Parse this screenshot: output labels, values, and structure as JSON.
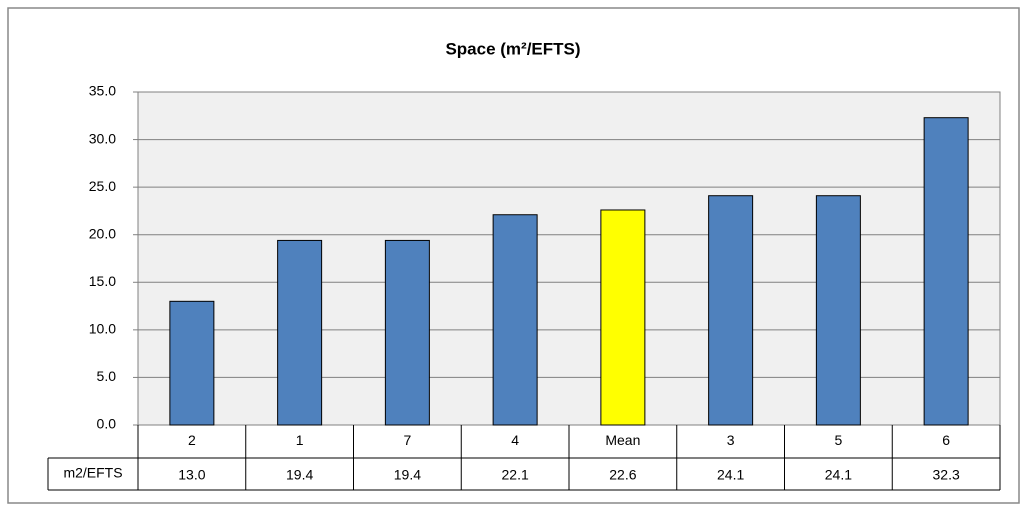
{
  "chart_data": {
    "type": "bar",
    "title": "Space (m²/EFTS)",
    "categories": [
      "2",
      "1",
      "7",
      "4",
      "Mean",
      "3",
      "5",
      "6"
    ],
    "series": [
      {
        "name": "m2/EFTS",
        "color": "#4f81bd",
        "colors": [
          "#4f81bd",
          "#4f81bd",
          "#4f81bd",
          "#4f81bd",
          "#ffff00",
          "#4f81bd",
          "#4f81bd",
          "#4f81bd"
        ],
        "values": [
          13.0,
          19.4,
          19.4,
          22.1,
          22.6,
          24.1,
          24.1,
          32.3
        ],
        "value_labels": [
          "13.0",
          "19.4",
          "19.4",
          "22.1",
          "22.6",
          "24.1",
          "24.1",
          "32.3"
        ]
      }
    ],
    "ylim": [
      0,
      35
    ],
    "yticks": [
      {
        "value": 0,
        "label": "0.0"
      },
      {
        "value": 5,
        "label": "5.0"
      },
      {
        "value": 10,
        "label": "10.0"
      },
      {
        "value": 15,
        "label": "15.0"
      },
      {
        "value": 20,
        "label": "20.0"
      },
      {
        "value": 25,
        "label": "25.0"
      },
      {
        "value": 30,
        "label": "30.0"
      },
      {
        "value": 35,
        "label": "35.0"
      }
    ],
    "grid": true,
    "data_table": true
  }
}
